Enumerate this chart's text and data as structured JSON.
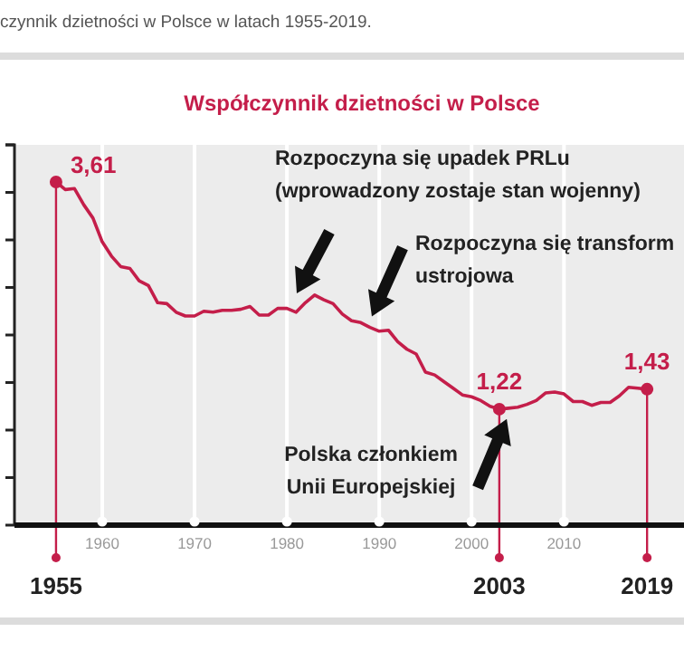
{
  "chart_data": {
    "type": "line",
    "subtitle": "czynnik dzietności w Polsce w latach 1955-2019.",
    "title": "Współczynnik dzietności w Polsce",
    "x": [
      1955,
      1956,
      1957,
      1958,
      1959,
      1960,
      1961,
      1962,
      1963,
      1964,
      1965,
      1966,
      1967,
      1968,
      1969,
      1970,
      1971,
      1972,
      1973,
      1974,
      1975,
      1976,
      1977,
      1978,
      1979,
      1980,
      1981,
      1982,
      1983,
      1984,
      1985,
      1986,
      1987,
      1988,
      1989,
      1990,
      1991,
      1992,
      1993,
      1994,
      1995,
      1996,
      1997,
      1998,
      1999,
      2000,
      2001,
      2002,
      2003,
      2004,
      2005,
      2006,
      2007,
      2008,
      2009,
      2010,
      2011,
      2012,
      2013,
      2014,
      2015,
      2016,
      2017,
      2018,
      2019
    ],
    "series": [
      {
        "color": "#c41e4a",
        "values": [
          3.61,
          3.53,
          3.54,
          3.37,
          3.23,
          2.98,
          2.83,
          2.72,
          2.7,
          2.57,
          2.52,
          2.34,
          2.33,
          2.24,
          2.2,
          2.2,
          2.25,
          2.24,
          2.26,
          2.26,
          2.27,
          2.3,
          2.21,
          2.21,
          2.28,
          2.28,
          2.24,
          2.34,
          2.42,
          2.37,
          2.33,
          2.22,
          2.15,
          2.13,
          2.08,
          2.04,
          2.05,
          1.93,
          1.85,
          1.8,
          1.61,
          1.58,
          1.51,
          1.44,
          1.37,
          1.35,
          1.31,
          1.25,
          1.22,
          1.23,
          1.24,
          1.27,
          1.31,
          1.39,
          1.4,
          1.38,
          1.3,
          1.3,
          1.26,
          1.29,
          1.29,
          1.36,
          1.45,
          1.44,
          1.43
        ],
        "value_labels": [
          "3,61",
          null,
          null,
          null,
          null,
          null,
          null,
          null,
          null,
          null,
          null,
          null,
          null,
          null,
          null,
          null,
          null,
          null,
          null,
          null,
          null,
          null,
          null,
          null,
          null,
          null,
          null,
          null,
          null,
          null,
          null,
          null,
          null,
          null,
          null,
          null,
          null,
          null,
          null,
          null,
          null,
          null,
          null,
          null,
          null,
          null,
          null,
          null,
          "1,22",
          null,
          null,
          null,
          null,
          null,
          null,
          null,
          null,
          null,
          null,
          null,
          null,
          null,
          null,
          null,
          "1,43"
        ]
      }
    ],
    "xlim": [
      1950.5,
      2023
    ],
    "xticks": [
      1960,
      1970,
      1980,
      1990,
      2000,
      2010
    ],
    "ylim": [
      0,
      4
    ],
    "yticks": [
      {
        "value": 0.5,
        "label": null
      },
      {
        "value": 1,
        "label": null
      },
      {
        "value": 1.5,
        "label": null
      },
      {
        "value": 2,
        "label": null
      },
      {
        "value": 2.5,
        "label": null
      },
      {
        "value": 3,
        "label": null
      },
      {
        "value": 3.5,
        "label": null
      },
      {
        "value": 4,
        "label": null
      }
    ],
    "grid": "x",
    "ref_lines": [
      {
        "axis": "x",
        "value": 1955,
        "label": "1955",
        "color": "#c41e4a"
      },
      {
        "axis": "x",
        "value": 2003,
        "label": "2003",
        "color": "#c41e4a"
      },
      {
        "axis": "x",
        "value": 2019,
        "label": "2019",
        "color": "#c41e4a"
      }
    ],
    "annotations": [
      "Rozpoczyna się upadek PRLu\n(wprowadzony zostaje stan wojenny)",
      {
        "text": "Rozpoczyna się transform\nustrojowa",
        "x": 1989,
        "y": 2.08
      },
      {
        "text": "Polska członkiem\nUnii Europejskiej",
        "x": 2004,
        "y": 1.23
      }
    ]
  }
}
